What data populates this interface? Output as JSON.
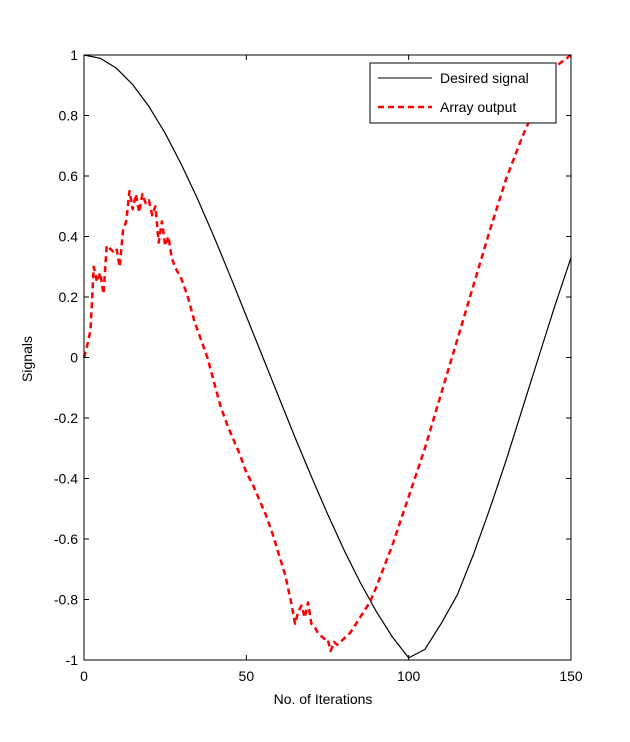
{
  "chart_data": {
    "type": "line",
    "title": "",
    "xlabel": "No. of Iterations",
    "ylabel": "Signals",
    "xlim": [
      0,
      150
    ],
    "ylim": [
      -1,
      1
    ],
    "xticks": [
      0,
      50,
      100,
      150
    ],
    "yticks": [
      -1,
      -0.8,
      -0.6,
      -0.4,
      -0.2,
      0,
      0.2,
      0.4,
      0.6,
      0.8,
      1
    ],
    "xtick_labels": [
      "0",
      "50",
      "100",
      "150"
    ],
    "ytick_labels": [
      "-1",
      "-0.8",
      "-0.6",
      "-0.4",
      "-0.2",
      "0",
      "0.2",
      "0.4",
      "0.6",
      "0.8",
      "1"
    ],
    "grid": false,
    "legend_position": "top-right",
    "series": [
      {
        "name": "Desired signal",
        "color": "#000000",
        "style": "solid",
        "x": [
          0,
          5,
          10,
          15,
          20,
          25,
          30,
          35,
          40,
          45,
          50,
          55,
          60,
          65,
          70,
          75,
          80,
          85,
          90,
          95,
          100,
          105,
          110,
          115,
          120,
          125,
          130,
          135,
          140,
          145,
          150
        ],
        "y": [
          1.0,
          0.989,
          0.956,
          0.902,
          0.83,
          0.741,
          0.638,
          0.524,
          0.4,
          0.27,
          0.137,
          0.003,
          -0.131,
          -0.264,
          -0.393,
          -0.517,
          -0.634,
          -0.742,
          -0.839,
          -0.924,
          -0.993,
          -0.965,
          -0.88,
          -0.784,
          -0.65,
          -0.5,
          -0.34,
          -0.17,
          0.0,
          0.17,
          0.33
        ]
      },
      {
        "name": "Array output",
        "color": "#ff0000",
        "style": "dashed",
        "x": [
          0,
          1,
          2,
          3,
          4,
          5,
          6,
          7,
          8,
          9,
          10,
          11,
          12,
          13,
          14,
          15,
          16,
          17,
          18,
          19,
          20,
          21,
          22,
          23,
          24,
          25,
          26,
          27,
          28,
          30,
          32,
          34,
          36,
          38,
          40,
          42,
          44,
          46,
          48,
          50,
          52,
          54,
          56,
          58,
          60,
          62,
          64,
          65,
          66,
          67,
          68,
          69,
          70,
          71,
          72,
          73,
          74,
          75,
          76,
          77,
          78,
          80,
          82,
          85,
          88,
          90,
          95,
          100,
          105,
          110,
          115,
          120,
          125,
          130,
          135,
          140,
          145,
          150
        ],
        "y": [
          0.0,
          0.04,
          0.09,
          0.3,
          0.25,
          0.28,
          0.21,
          0.37,
          0.36,
          0.35,
          0.36,
          0.3,
          0.42,
          0.45,
          0.55,
          0.49,
          0.54,
          0.48,
          0.54,
          0.51,
          0.52,
          0.47,
          0.5,
          0.38,
          0.45,
          0.37,
          0.4,
          0.33,
          0.3,
          0.26,
          0.2,
          0.12,
          0.06,
          0.0,
          -0.08,
          -0.16,
          -0.22,
          -0.27,
          -0.32,
          -0.38,
          -0.42,
          -0.47,
          -0.52,
          -0.58,
          -0.65,
          -0.72,
          -0.82,
          -0.88,
          -0.84,
          -0.82,
          -0.86,
          -0.81,
          -0.88,
          -0.89,
          -0.91,
          -0.92,
          -0.93,
          -0.93,
          -0.97,
          -0.94,
          -0.95,
          -0.93,
          -0.91,
          -0.86,
          -0.81,
          -0.76,
          -0.62,
          -0.46,
          -0.3,
          -0.12,
          0.06,
          0.24,
          0.42,
          0.59,
          0.73,
          0.85,
          0.96,
          1.0
        ]
      }
    ]
  }
}
